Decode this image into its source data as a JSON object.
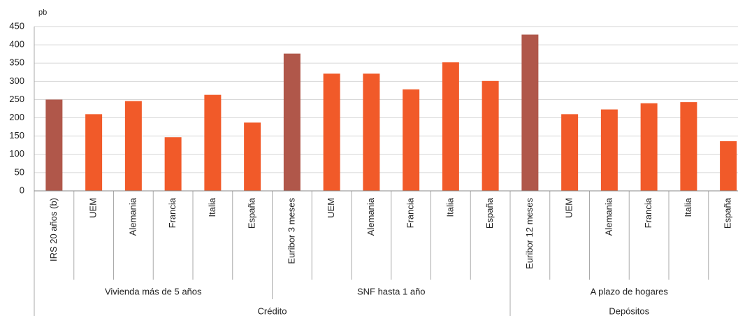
{
  "chart_data": {
    "type": "bar",
    "y_label": "pb",
    "ylim": [
      0,
      450
    ],
    "yticks": [
      0,
      50,
      100,
      150,
      200,
      250,
      300,
      350,
      400,
      450
    ],
    "grid": true,
    "groups": [
      {
        "name": "Crédito",
        "subgroups": [
          {
            "name": "Vivienda más de 5 años",
            "categories": [
              "IRS 20 años (b)",
              "UEM",
              "Alemania",
              "Francia",
              "Italia",
              "España"
            ],
            "values": [
              250,
              210,
              246,
              147,
              263,
              187
            ],
            "colors": [
              "#b0574a",
              "#f15a29",
              "#f15a29",
              "#f15a29",
              "#f15a29",
              "#f15a29"
            ]
          },
          {
            "name": "SNF hasta 1 año",
            "categories": [
              "Euribor 3 meses",
              "UEM",
              "Alemania",
              "Francia",
              "Italia",
              "España"
            ],
            "values": [
              376,
              321,
              321,
              278,
              352,
              301
            ],
            "colors": [
              "#b0574a",
              "#f15a29",
              "#f15a29",
              "#f15a29",
              "#f15a29",
              "#f15a29"
            ]
          }
        ]
      },
      {
        "name": "Depósitos",
        "subgroups": [
          {
            "name": "A plazo de hogares",
            "categories": [
              "Euribor 12 meses",
              "UEM",
              "Alemania",
              "Francia",
              "Italia",
              "España"
            ],
            "values": [
              428,
              210,
              223,
              240,
              243,
              136
            ],
            "colors": [
              "#b0574a",
              "#f15a29",
              "#f15a29",
              "#f15a29",
              "#f15a29",
              "#f15a29"
            ]
          }
        ]
      }
    ]
  }
}
